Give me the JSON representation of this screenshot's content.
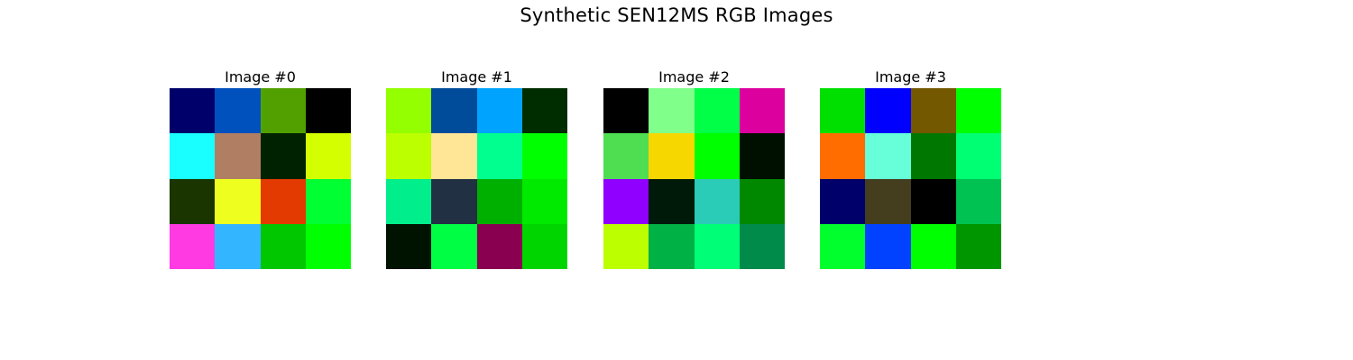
{
  "figure": {
    "title": "Synthetic SEN12MS RGB Images"
  },
  "chart_data": {
    "type": "heatmap",
    "title": "Synthetic SEN12MS RGB Images",
    "grid": false,
    "panels": [
      {
        "title": "Image #0",
        "rows": [
          [
            "#00006b",
            "#0050be",
            "#52a000",
            "#000000"
          ],
          [
            "#19ffff",
            "#b07f63",
            "#002200",
            "#d4ff00"
          ],
          [
            "#1b3500",
            "#eeff1f",
            "#e23a00",
            "#00ff33"
          ],
          [
            "#ff3ae3",
            "#33b6ff",
            "#00c700",
            "#00ff00"
          ]
        ]
      },
      {
        "title": "Image #1",
        "rows": [
          [
            "#94ff00",
            "#004c9b",
            "#00a4ff",
            "#002d00"
          ],
          [
            "#bcff00",
            "#ffe596",
            "#00ff8f",
            "#00ff00"
          ],
          [
            "#00ee8b",
            "#223043",
            "#00b000",
            "#00ea00"
          ],
          [
            "#001200",
            "#00ff44",
            "#8a0050",
            "#00d500"
          ]
        ]
      },
      {
        "title": "Image #2",
        "rows": [
          [
            "#000000",
            "#80ff8a",
            "#00ff46",
            "#dc009f"
          ],
          [
            "#4fdd52",
            "#f7d700",
            "#00ff00",
            "#001000"
          ],
          [
            "#9000ff",
            "#001a0a",
            "#2acbb7",
            "#008800"
          ],
          [
            "#bcff00",
            "#00b145",
            "#00ff76",
            "#008b4b"
          ]
        ]
      },
      {
        "title": "Image #3",
        "rows": [
          [
            "#00e000",
            "#0000ff",
            "#735800",
            "#00ff00"
          ],
          [
            "#ff6d00",
            "#66ffd9",
            "#007700",
            "#00ff73"
          ],
          [
            "#00006a",
            "#443d1e",
            "#000000",
            "#00c252"
          ],
          [
            "#00ff2d",
            "#0042ff",
            "#00ff00",
            "#009600"
          ]
        ]
      }
    ]
  }
}
